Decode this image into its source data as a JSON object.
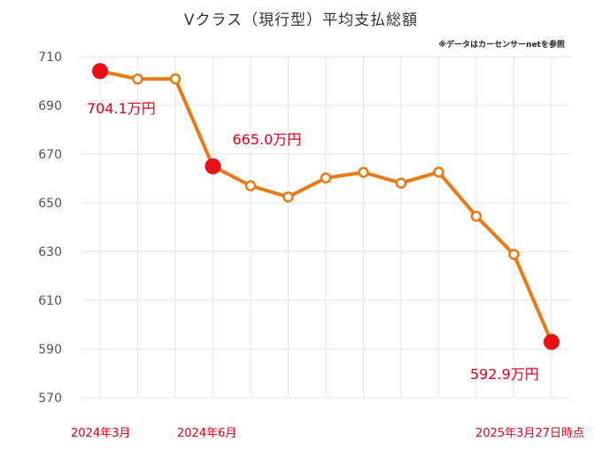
{
  "chart_data": {
    "type": "line",
    "title": "Vクラス（現行型）平均支払総額",
    "note": "※データはカーセンサーnetを参照",
    "ylim": [
      570,
      710
    ],
    "yticks": [
      710,
      690,
      670,
      650,
      630,
      610,
      590,
      570
    ],
    "grid": true,
    "x_labels": [
      {
        "index": 0,
        "text": "2024年3月"
      },
      {
        "index": 3,
        "text": "2024年6月"
      },
      {
        "index": 12,
        "text": "2025年3月27日時点"
      }
    ],
    "series": [
      {
        "values": [
          704.1,
          700.8,
          700.9,
          665.0,
          657.0,
          652.4,
          660.2,
          662.5,
          658.1,
          662.6,
          644.5,
          628.8,
          592.9
        ],
        "highlight_indices": [
          0,
          3,
          12
        ],
        "color": "#ea7a16",
        "highlight_color": "#e90f15"
      }
    ],
    "data_labels": [
      {
        "index": 0,
        "text": "704.1万円"
      },
      {
        "index": 3,
        "text": "665.0万円"
      },
      {
        "index": 12,
        "text": "592.9万円"
      }
    ]
  }
}
